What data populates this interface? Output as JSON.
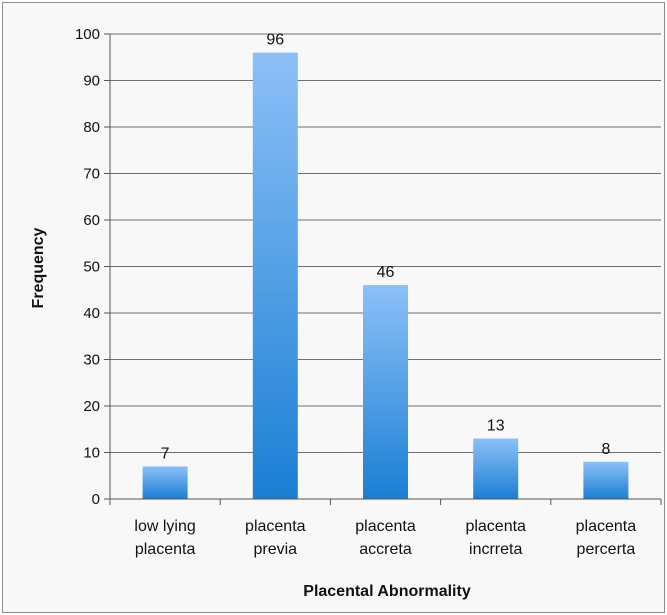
{
  "chart_data": {
    "type": "bar",
    "categories": [
      [
        "low lying",
        "placenta"
      ],
      [
        "placenta",
        "previa"
      ],
      [
        "placenta",
        "accreta"
      ],
      [
        "placenta",
        "incrreta"
      ],
      [
        "placenta",
        "percerta"
      ]
    ],
    "values": [
      7,
      96,
      46,
      13,
      8
    ],
    "data_labels": [
      "7",
      "96",
      "46",
      "13",
      "8"
    ],
    "title": "",
    "xlabel": "Placental Abnormality",
    "ylabel": "Frequency",
    "ylim": [
      0,
      100
    ],
    "yticks": [
      0,
      10,
      20,
      30,
      40,
      50,
      60,
      70,
      80,
      90,
      100
    ],
    "grid": true,
    "legend": "none",
    "colors": {
      "bar_top": "#8cc0f7",
      "bar_bottom": "#1a7fd4",
      "grid": "#6f6f6f",
      "axis": "#555555",
      "background": "#f8f8f8"
    }
  }
}
